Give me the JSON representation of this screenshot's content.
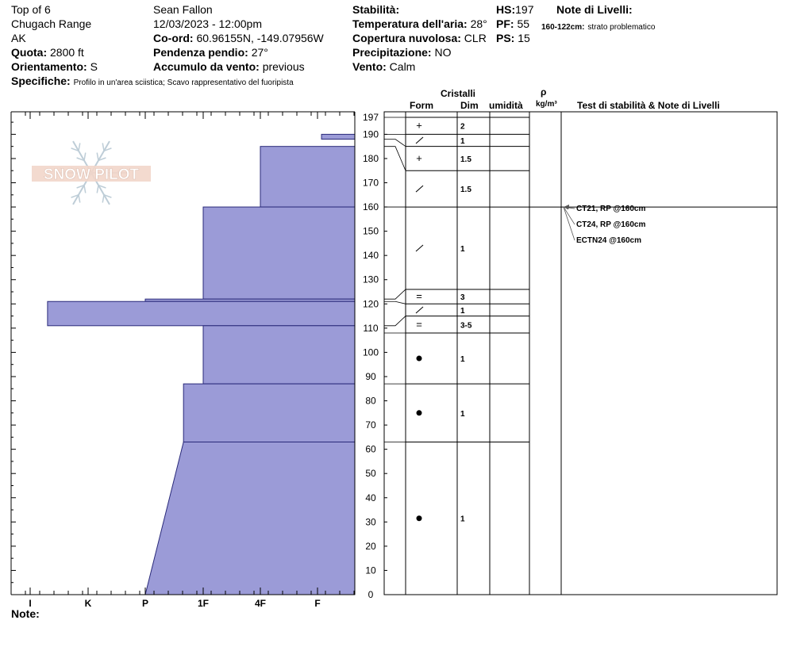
{
  "header": {
    "name": "Top of 6",
    "range": "Chugach Range",
    "state": "AK",
    "elevation_label": "Quota:",
    "elevation": "2800 ft",
    "aspect_label": "Orientamento:",
    "aspect": "S",
    "specifics_label": "Specifiche:",
    "specifics": "Profilo in un'area sciistica; Scavo rappresentativo del fuoripista",
    "observer": "Sean Fallon",
    "datetime": "12/03/2023 - 12:00pm",
    "coord_label": "Co-ord:",
    "coord": "60.96155N, -149.07956W",
    "slope_label": "Pendenza pendio:",
    "slope": "27°",
    "wind_loading_label": "Accumulo da vento:",
    "wind_loading": "previous",
    "stability_label": "Stabilità:",
    "stability": "",
    "air_temp_label": "Temperatura dell'aria:",
    "air_temp": "28°",
    "sky_label": "Copertura nuvolosa:",
    "sky": "CLR",
    "precip_label": "Precipitazione:",
    "precip": "NO",
    "wind_label": "Vento:",
    "wind": "Calm",
    "hs_label": "HS:",
    "hs": "197",
    "pf_label": "PF:",
    "pf": "55",
    "ps_label": "PS:",
    "ps": "15",
    "layer_notes_label": "Note di Livelli:",
    "layer_note_range": "160-122cm:",
    "layer_note_text": "strato problematico"
  },
  "watermark": "SNOW PILOT",
  "notes_label": "Note:",
  "table_headers": {
    "crystals": "Cristalli",
    "form": "Form",
    "size": "Dim",
    "moisture": "umidità",
    "rho": "ρ",
    "density_unit": "kg/m³",
    "stability_notes": "Test di stabilità & Note di Livelli"
  },
  "colors": {
    "hardness_fill": "#9b9bd7",
    "hardness_stroke": "#2a2a7a",
    "surface_line": "#0000a0"
  },
  "chart_data": {
    "type": "snow_profile",
    "y_axis": {
      "label": "",
      "ylim": [
        0,
        197
      ],
      "ticks": [
        0,
        10,
        20,
        30,
        40,
        50,
        60,
        70,
        80,
        90,
        100,
        110,
        120,
        130,
        140,
        150,
        160,
        170,
        180,
        190,
        197
      ]
    },
    "hardness_scale": [
      "I",
      "K",
      "P",
      "1F",
      "4F",
      "F"
    ],
    "hardness_layers": [
      {
        "top": 197,
        "bottom": 190,
        "hardness": 5.7
      },
      {
        "top": 190,
        "bottom": 188,
        "hardness": 5.07
      },
      {
        "top": 188,
        "bottom": 185,
        "hardness": 5.7
      },
      {
        "top": 185,
        "bottom": 160,
        "hardness": 4.0
      },
      {
        "top": 160,
        "bottom": 122,
        "hardness": 3.0
      },
      {
        "top": 122,
        "bottom": 121,
        "hardness": 2.0
      },
      {
        "top": 121,
        "bottom": 111,
        "hardness": 0.3
      },
      {
        "top": 111,
        "bottom": 87,
        "hardness": 3.0
      },
      {
        "top": 87,
        "bottom": 63,
        "hardness": 2.66
      },
      {
        "top": 63,
        "bottom": 0,
        "hardness_top": 2.66,
        "hardness_bottom": 2.0
      }
    ],
    "crystal_layers": [
      {
        "top": 197,
        "bottom": 190,
        "form": "+",
        "size": "2"
      },
      {
        "top": 190,
        "bottom": 188,
        "form": "/",
        "size": "1"
      },
      {
        "top": 188,
        "bottom": 185,
        "form": "+",
        "size": "1.5"
      },
      {
        "top": 185,
        "bottom": 160,
        "form": "/",
        "size": "1.5"
      },
      {
        "top": 160,
        "bottom": 122,
        "form": "/",
        "size": "1"
      },
      {
        "top": 122,
        "bottom": 121,
        "form": "=",
        "size": "3"
      },
      {
        "top": 121,
        "bottom": 111,
        "form": "/",
        "size": "1"
      },
      {
        "top": 111,
        "bottom": 108,
        "form": "=",
        "size": "3-5"
      },
      {
        "top": 108,
        "bottom": 87,
        "form": "●",
        "size": "1"
      },
      {
        "top": 87,
        "bottom": 63,
        "form": "●",
        "size": "1"
      },
      {
        "top": 63,
        "bottom": 0,
        "form": "●",
        "size": "1"
      }
    ],
    "stability_tests": [
      {
        "depth": 160,
        "text": "CT21, RP @160cm"
      },
      {
        "depth": 160,
        "text": "CT24, RP @160cm"
      },
      {
        "depth": 160,
        "text": "ECTN24 @160cm"
      }
    ]
  }
}
